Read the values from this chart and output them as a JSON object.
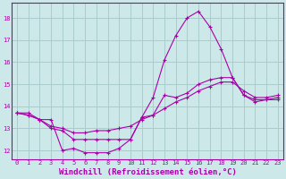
{
  "background_color": "#cce8e8",
  "grid_color": "#aacccc",
  "line_color": "#aa00aa",
  "xlabel": "Windchill (Refroidissement éolien,°C)",
  "xlabel_fontsize": 6.5,
  "xlim": [
    -0.5,
    23.5
  ],
  "ylim": [
    11.6,
    18.7
  ],
  "yticks": [
    12,
    13,
    14,
    15,
    16,
    17,
    18
  ],
  "xticks": [
    0,
    1,
    2,
    3,
    4,
    5,
    6,
    7,
    8,
    9,
    10,
    11,
    12,
    13,
    14,
    15,
    16,
    17,
    18,
    19,
    20,
    21,
    22,
    23
  ],
  "line1_x": [
    0,
    1,
    2,
    3,
    4,
    5,
    6,
    7,
    8,
    9,
    10,
    11,
    12,
    13,
    14,
    15,
    16,
    17,
    18,
    19,
    20,
    21,
    22,
    23
  ],
  "line1_y": [
    13.7,
    13.7,
    13.4,
    13.4,
    12.0,
    12.1,
    11.9,
    11.9,
    11.9,
    12.1,
    12.5,
    13.5,
    14.4,
    16.1,
    17.2,
    18.0,
    18.3,
    17.6,
    16.6,
    15.3,
    14.5,
    14.2,
    14.3,
    14.3
  ],
  "line2_x": [
    0,
    1,
    2,
    3,
    4,
    5,
    6,
    7,
    8,
    9,
    10,
    11,
    12,
    13,
    14,
    15,
    16,
    17,
    18,
    19,
    20,
    21,
    22,
    23
  ],
  "line2_y": [
    13.7,
    13.6,
    13.4,
    13.0,
    12.9,
    12.5,
    12.5,
    12.5,
    12.5,
    12.5,
    12.5,
    13.5,
    13.6,
    14.5,
    14.4,
    14.6,
    15.0,
    15.2,
    15.3,
    15.3,
    14.5,
    14.3,
    14.3,
    14.4
  ],
  "line3_x": [
    0,
    1,
    2,
    3,
    4,
    5,
    6,
    7,
    8,
    9,
    10,
    11,
    12,
    13,
    14,
    15,
    16,
    17,
    18,
    19,
    20,
    21,
    22,
    23
  ],
  "line3_y": [
    13.7,
    13.6,
    13.4,
    13.1,
    13.0,
    12.8,
    12.8,
    12.9,
    12.9,
    13.0,
    13.1,
    13.4,
    13.6,
    13.9,
    14.2,
    14.4,
    14.7,
    14.9,
    15.1,
    15.1,
    14.7,
    14.4,
    14.4,
    14.5
  ]
}
